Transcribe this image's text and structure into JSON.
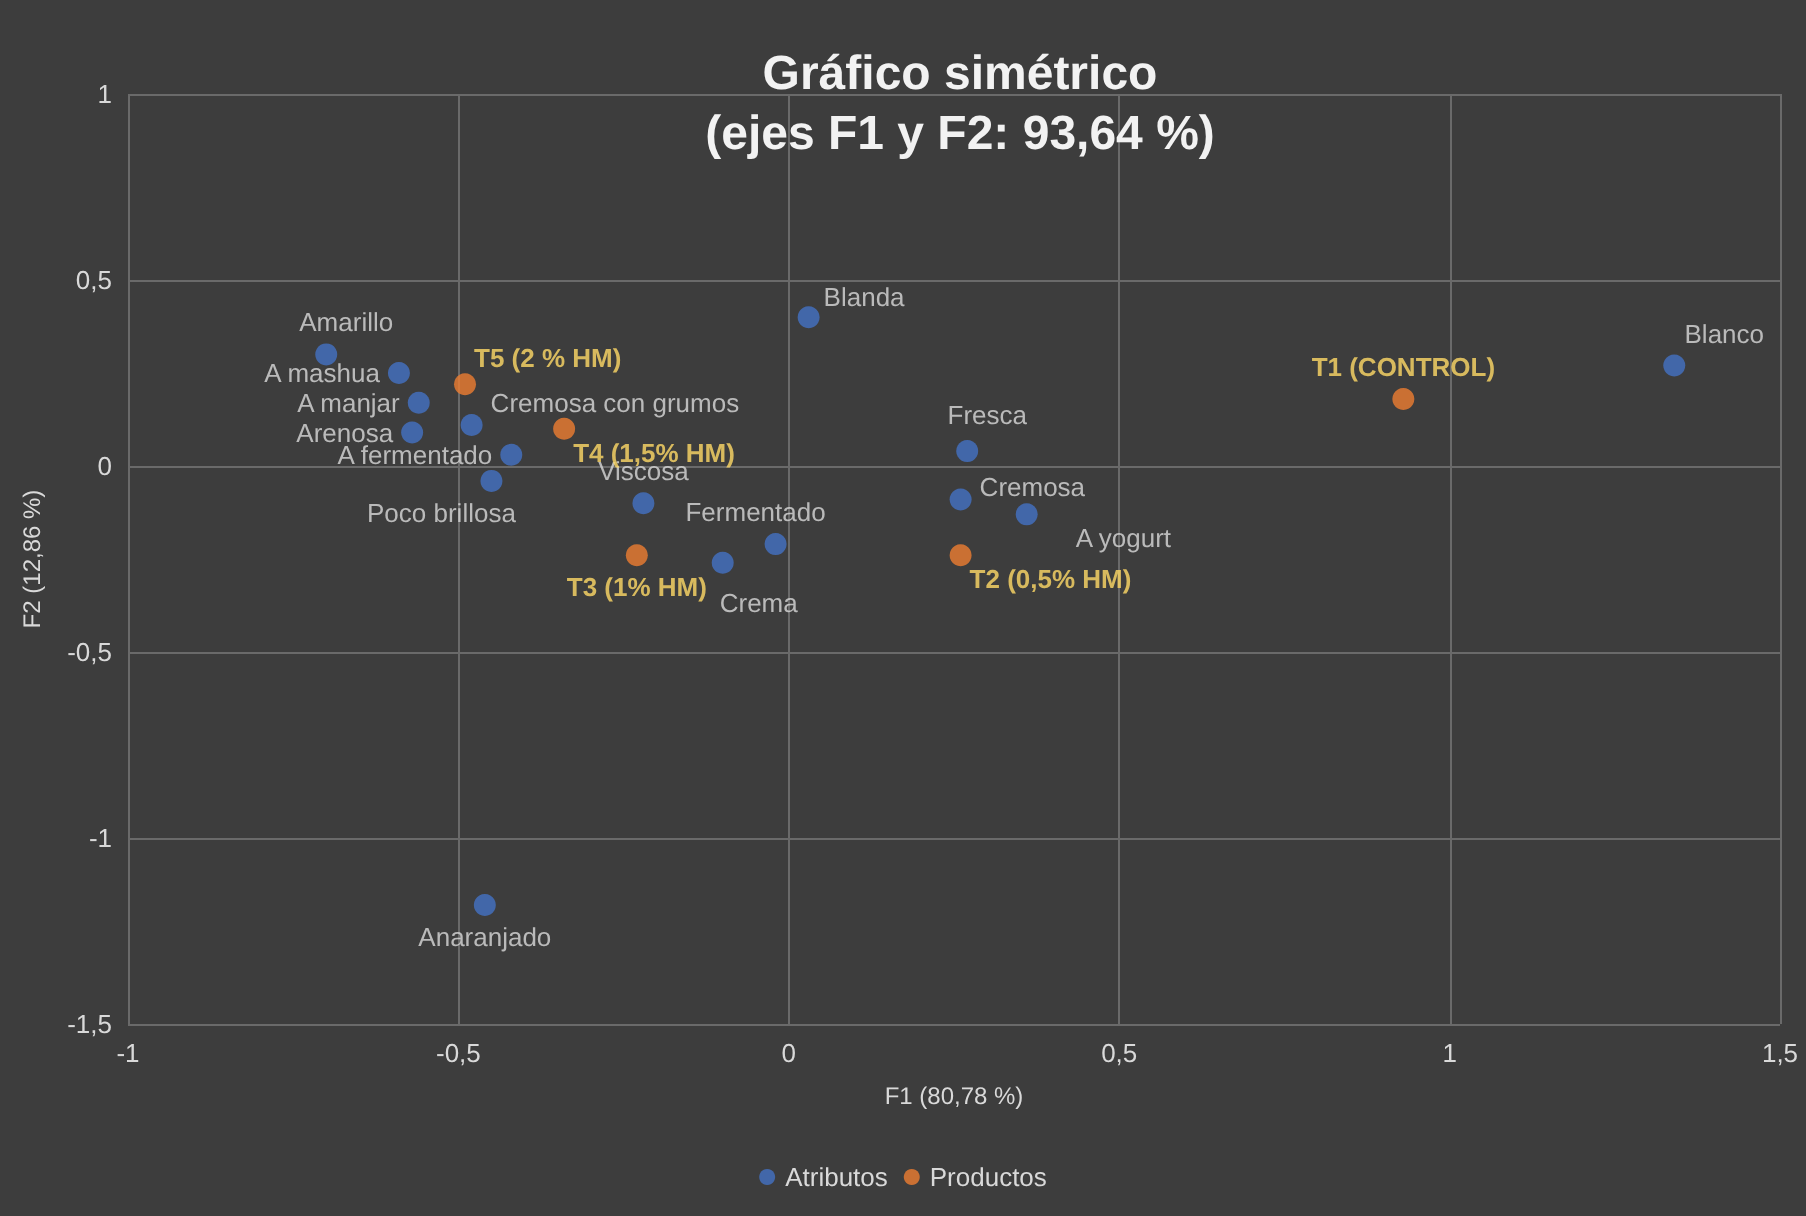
{
  "chart_data": {
    "type": "scatter",
    "title": "Gráfico simétrico",
    "subtitle": "(ejes F1 y F2: 93,64 %)",
    "xlabel": "F1 (80,78 %)",
    "ylabel": "F2 (12,86 %)",
    "series": [
      {
        "name": "Atributos",
        "color": "#4472c4",
        "x": [
          -0.7,
          -0.59,
          -0.56,
          -0.57,
          -0.42,
          -0.48,
          -0.45,
          -0.22,
          0.03,
          0.27,
          0.26,
          0.36,
          -0.02,
          -0.1,
          -0.46,
          1.34
        ],
        "values": [
          0.3,
          0.25,
          0.17,
          0.09,
          0.03,
          0.11,
          -0.04,
          -0.1,
          0.4,
          0.04,
          -0.09,
          -0.13,
          -0.21,
          -0.26,
          -1.18,
          0.27
        ]
      },
      {
        "name": "Productos",
        "color": "#ed7d31",
        "x": [
          -0.49,
          -0.34,
          -0.23,
          0.26,
          0.93
        ],
        "values": [
          0.22,
          0.1,
          -0.24,
          -0.24,
          0.18
        ]
      }
    ],
    "annotations": [
      {
        "text": "Amarillo",
        "x": -0.7,
        "y": 0.3
      },
      {
        "text": "A mashua",
        "x": -0.59,
        "y": 0.25
      },
      {
        "text": "A manjar",
        "x": -0.56,
        "y": 0.17
      },
      {
        "text": "Arenosa",
        "x": -0.57,
        "y": 0.09
      },
      {
        "text": "A fermentado",
        "x": -0.42,
        "y": 0.03
      },
      {
        "text": "Cremosa con grumos",
        "x": -0.48,
        "y": 0.11
      },
      {
        "text": "Poco brillosa",
        "x": -0.45,
        "y": -0.04
      },
      {
        "text": "Viscosa",
        "x": -0.22,
        "y": -0.1
      },
      {
        "text": "Blanda",
        "x": 0.03,
        "y": 0.4
      },
      {
        "text": "Fresca",
        "x": 0.27,
        "y": 0.04
      },
      {
        "text": "Cremosa",
        "x": 0.26,
        "y": -0.09
      },
      {
        "text": "A yogurt",
        "x": 0.36,
        "y": -0.13
      },
      {
        "text": "Fermentado",
        "x": -0.02,
        "y": -0.21
      },
      {
        "text": "Crema",
        "x": -0.1,
        "y": -0.26
      },
      {
        "text": "Anaranjado",
        "x": -0.46,
        "y": -1.18
      },
      {
        "text": "Blanco",
        "x": 1.34,
        "y": 0.27
      },
      {
        "text": "T5 (2 % HM)",
        "x": -0.49,
        "y": 0.22
      },
      {
        "text": "T4 (1,5% HM)",
        "x": -0.34,
        "y": 0.1
      },
      {
        "text": "T3 (1% HM)",
        "x": -0.23,
        "y": -0.24
      },
      {
        "text": "T2 (0,5% HM)",
        "x": 0.26,
        "y": -0.24
      },
      {
        "text": "T1 (CONTROL)",
        "x": 0.93,
        "y": 0.18
      }
    ],
    "xlim": [
      -1,
      1.5
    ],
    "xticks": [
      -1,
      {
        "value": -0.5,
        "label": "-0,5"
      },
      0,
      {
        "value": 0.5,
        "label": "0,5"
      },
      1,
      {
        "value": 1.5,
        "label": "1,5"
      }
    ],
    "ylim": [
      -1.5,
      1
    ],
    "yticks": [
      {
        "value": -1.5,
        "label": "-1,5"
      },
      -1,
      {
        "value": -0.5,
        "label": "-0,5"
      },
      0,
      {
        "value": 0.5,
        "label": "0,5"
      },
      1
    ],
    "grid": true,
    "legend": "bottom",
    "marker": "circle"
  }
}
